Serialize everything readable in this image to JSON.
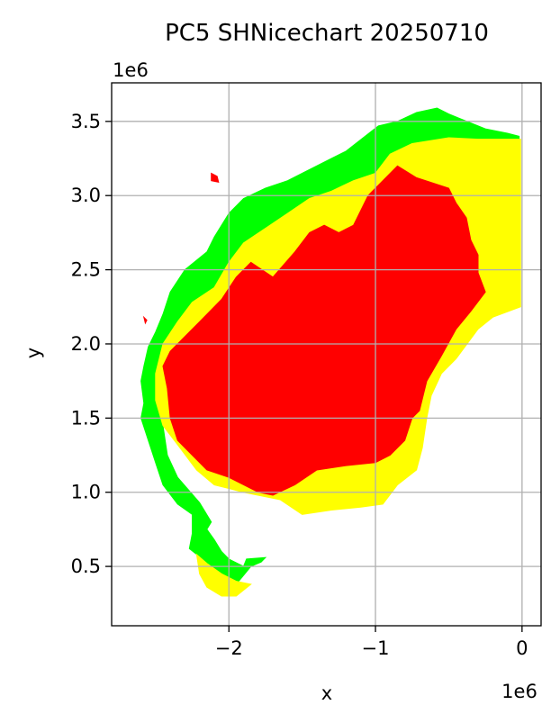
{
  "figure": {
    "title": "PC5 SHNicechart 20250710",
    "xlabel": "x",
    "ylabel": "y",
    "x_offset_label": "1e6",
    "y_offset_label": "1e6"
  },
  "chart_data": {
    "type": "map",
    "title": "PC5 SHNicechart 20250710",
    "xlabel": "x",
    "ylabel": "y",
    "x_multiplier": "1e6",
    "y_multiplier": "1e6",
    "xlim": [
      -2.8,
      0.13
    ],
    "ylim": [
      0.1,
      3.76
    ],
    "xticks": [
      -2,
      -1,
      0
    ],
    "xtick_labels": [
      "−2",
      "−1",
      "0"
    ],
    "yticks": [
      0.5,
      1.0,
      1.5,
      2.0,
      2.5,
      3.0,
      3.5
    ],
    "ytick_labels": [
      "0.5",
      "1.0",
      "1.5",
      "2.0",
      "2.5",
      "3.0",
      "3.5"
    ],
    "grid": true,
    "colors": {
      "green": "#00ff00",
      "yellow": "#ffff00",
      "red": "#ff0000"
    },
    "regions": [
      {
        "color": "green",
        "outline": [
          [
            -0.02,
            3.4
          ],
          [
            -0.1,
            3.42
          ],
          [
            -0.25,
            3.45
          ],
          [
            -0.5,
            3.55
          ],
          [
            -0.58,
            3.59
          ],
          [
            -0.72,
            3.56
          ],
          [
            -0.85,
            3.5
          ],
          [
            -0.98,
            3.47
          ],
          [
            -1.07,
            3.4
          ],
          [
            -1.2,
            3.3
          ],
          [
            -1.3,
            3.25
          ],
          [
            -1.5,
            3.15
          ],
          [
            -1.6,
            3.1
          ],
          [
            -1.75,
            3.05
          ],
          [
            -1.9,
            2.98
          ],
          [
            -2.0,
            2.88
          ],
          [
            -2.1,
            2.72
          ],
          [
            -2.15,
            2.62
          ],
          [
            -2.3,
            2.5
          ],
          [
            -2.4,
            2.35
          ],
          [
            -2.45,
            2.2
          ],
          [
            -2.5,
            2.08
          ],
          [
            -2.55,
            1.98
          ],
          [
            -2.58,
            1.85
          ],
          [
            -2.6,
            1.75
          ],
          [
            -2.58,
            1.6
          ],
          [
            -2.6,
            1.5
          ],
          [
            -2.55,
            1.35
          ],
          [
            -2.5,
            1.2
          ],
          [
            -2.45,
            1.05
          ],
          [
            -2.35,
            0.92
          ],
          [
            -2.25,
            0.85
          ],
          [
            -2.25,
            0.72
          ],
          [
            -2.27,
            0.62
          ],
          [
            -2.18,
            0.55
          ],
          [
            -2.12,
            0.45
          ],
          [
            -2.05,
            0.38
          ],
          [
            -1.95,
            0.38
          ],
          [
            -1.85,
            0.5
          ],
          [
            -1.78,
            0.53
          ],
          [
            -1.75,
            0.56
          ],
          [
            -1.88,
            0.55
          ],
          [
            -1.9,
            0.5
          ],
          [
            -2.0,
            0.55
          ],
          [
            -2.05,
            0.6
          ],
          [
            -2.1,
            0.68
          ],
          [
            -2.15,
            0.75
          ],
          [
            -2.12,
            0.8
          ],
          [
            -2.2,
            0.93
          ],
          [
            -2.35,
            1.1
          ],
          [
            -2.42,
            1.25
          ],
          [
            -2.45,
            1.45
          ],
          [
            -2.5,
            1.62
          ],
          [
            -2.5,
            1.8
          ],
          [
            -2.45,
            2.0
          ],
          [
            -2.35,
            2.15
          ],
          [
            -2.25,
            2.28
          ],
          [
            -2.1,
            2.38
          ],
          [
            -2.0,
            2.55
          ],
          [
            -1.9,
            2.68
          ],
          [
            -1.75,
            2.78
          ],
          [
            -1.6,
            2.88
          ],
          [
            -1.45,
            2.98
          ],
          [
            -1.3,
            3.03
          ],
          [
            -1.15,
            3.1
          ],
          [
            -1.0,
            3.15
          ],
          [
            -0.9,
            3.28
          ],
          [
            -0.75,
            3.35
          ],
          [
            -0.5,
            3.39
          ],
          [
            -0.3,
            3.38
          ],
          [
            -0.02,
            3.38
          ]
        ]
      },
      {
        "color": "yellow",
        "outline": [
          [
            -0.01,
            3.38
          ],
          [
            -0.3,
            3.38
          ],
          [
            -0.5,
            3.39
          ],
          [
            -0.75,
            3.35
          ],
          [
            -0.9,
            3.28
          ],
          [
            -1.0,
            3.15
          ],
          [
            -1.15,
            3.1
          ],
          [
            -1.3,
            3.03
          ],
          [
            -1.45,
            2.98
          ],
          [
            -1.6,
            2.88
          ],
          [
            -1.75,
            2.78
          ],
          [
            -1.9,
            2.68
          ],
          [
            -2.0,
            2.55
          ],
          [
            -2.1,
            2.38
          ],
          [
            -2.25,
            2.28
          ],
          [
            -2.35,
            2.15
          ],
          [
            -2.45,
            2.0
          ],
          [
            -2.5,
            1.8
          ],
          [
            -2.5,
            1.62
          ],
          [
            -2.45,
            1.45
          ],
          [
            -2.35,
            1.32
          ],
          [
            -2.22,
            1.15
          ],
          [
            -2.1,
            1.05
          ],
          [
            -1.9,
            1.0
          ],
          [
            -1.65,
            0.95
          ],
          [
            -1.5,
            0.85
          ],
          [
            -1.3,
            0.88
          ],
          [
            -1.1,
            0.9
          ],
          [
            -0.95,
            0.92
          ],
          [
            -0.85,
            1.05
          ],
          [
            -0.72,
            1.15
          ],
          [
            -0.68,
            1.3
          ],
          [
            -0.65,
            1.5
          ],
          [
            -0.62,
            1.65
          ],
          [
            -0.55,
            1.8
          ],
          [
            -0.45,
            1.9
          ],
          [
            -0.3,
            2.1
          ],
          [
            -0.2,
            2.18
          ],
          [
            -0.01,
            2.25
          ]
        ]
      },
      {
        "color": "red",
        "outline": [
          [
            -0.85,
            3.2
          ],
          [
            -0.72,
            3.12
          ],
          [
            -0.5,
            3.05
          ],
          [
            -0.45,
            2.95
          ],
          [
            -0.38,
            2.85
          ],
          [
            -0.35,
            2.7
          ],
          [
            -0.3,
            2.6
          ],
          [
            -0.3,
            2.48
          ],
          [
            -0.25,
            2.35
          ],
          [
            -0.35,
            2.22
          ],
          [
            -0.45,
            2.1
          ],
          [
            -0.55,
            1.92
          ],
          [
            -0.65,
            1.75
          ],
          [
            -0.7,
            1.55
          ],
          [
            -0.75,
            1.5
          ],
          [
            -0.8,
            1.35
          ],
          [
            -0.9,
            1.25
          ],
          [
            -1.0,
            1.2
          ],
          [
            -1.2,
            1.18
          ],
          [
            -1.4,
            1.15
          ],
          [
            -1.55,
            1.05
          ],
          [
            -1.7,
            0.98
          ],
          [
            -1.8,
            1.0
          ],
          [
            -2.0,
            1.1
          ],
          [
            -2.15,
            1.15
          ],
          [
            -2.25,
            1.25
          ],
          [
            -2.35,
            1.35
          ],
          [
            -2.4,
            1.5
          ],
          [
            -2.42,
            1.7
          ],
          [
            -2.45,
            1.85
          ],
          [
            -2.4,
            1.95
          ],
          [
            -2.3,
            2.05
          ],
          [
            -2.2,
            2.15
          ],
          [
            -2.05,
            2.3
          ],
          [
            -1.95,
            2.45
          ],
          [
            -1.85,
            2.55
          ],
          [
            -1.7,
            2.45
          ],
          [
            -1.55,
            2.62
          ],
          [
            -1.45,
            2.75
          ],
          [
            -1.35,
            2.8
          ],
          [
            -1.25,
            2.75
          ],
          [
            -1.15,
            2.8
          ],
          [
            -1.05,
            3.0
          ],
          [
            -0.95,
            3.1
          ]
        ]
      },
      {
        "color": "yellow",
        "outline": [
          [
            -2.22,
            0.58
          ],
          [
            -2.15,
            0.52
          ],
          [
            -2.05,
            0.45
          ],
          [
            -1.95,
            0.4
          ],
          [
            -1.85,
            0.38
          ],
          [
            -1.95,
            0.3
          ],
          [
            -2.05,
            0.3
          ],
          [
            -2.15,
            0.36
          ],
          [
            -2.2,
            0.45
          ]
        ]
      },
      {
        "color": "red",
        "outline": [
          [
            -2.12,
            3.15
          ],
          [
            -2.08,
            3.13
          ],
          [
            -2.07,
            3.09
          ],
          [
            -2.12,
            3.1
          ]
        ]
      },
      {
        "color": "red",
        "outline": [
          [
            -2.58,
            2.18
          ],
          [
            -2.56,
            2.16
          ],
          [
            -2.57,
            2.14
          ]
        ]
      }
    ]
  }
}
